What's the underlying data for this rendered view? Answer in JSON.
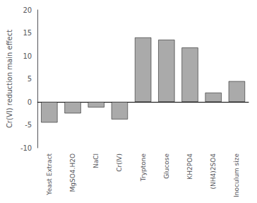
{
  "chart_data": {
    "type": "bar",
    "ylabel": "Cr(VI) reduction main effect",
    "categories": [
      "Yeast Extract",
      "MgSO4.H2O",
      "NaCl",
      "Cr(IV)",
      "Tryptone",
      "Glucose",
      "KH2PO4",
      "(NH4)2SO4",
      "Inoculum size"
    ],
    "values": [
      -4.5,
      -2.5,
      -1.2,
      -3.8,
      14.0,
      13.5,
      11.8,
      2.0,
      4.5
    ],
    "color": "#aaaaaa",
    "ylim": [
      -10,
      20
    ],
    "yticks": [
      -10,
      -5,
      0,
      5,
      10,
      15,
      20
    ],
    "grid": false
  }
}
